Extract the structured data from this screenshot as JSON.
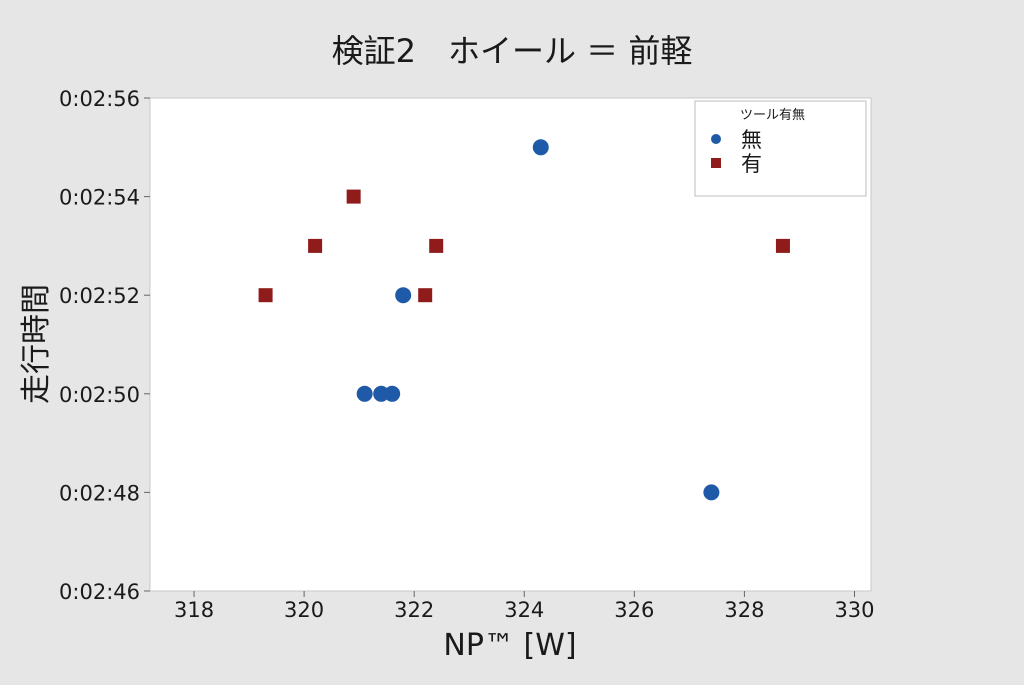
{
  "chart_data": {
    "type": "scatter",
    "title": "検証2　ホイール ＝ 前軽",
    "xlabel": "NP™ [W]",
    "ylabel": "走行時間",
    "xlim": [
      317.2,
      330.3
    ],
    "ylim": [
      166,
      176
    ],
    "xticks": [
      318,
      320,
      322,
      324,
      326,
      328,
      330
    ],
    "yticks": [
      {
        "value": 166,
        "label": "0:02:46"
      },
      {
        "value": 168,
        "label": "0:02:48"
      },
      {
        "value": 170,
        "label": "0:02:50"
      },
      {
        "value": 172,
        "label": "0:02:52"
      },
      {
        "value": 174,
        "label": "0:02:54"
      },
      {
        "value": 176,
        "label": "0:02:56"
      }
    ],
    "grid": false,
    "legend": {
      "title": "ツール有無",
      "position": "top-right"
    },
    "series": [
      {
        "name": "無",
        "marker": "circle",
        "color": "#1f5aa8",
        "points": [
          {
            "x": 321.1,
            "y": 170
          },
          {
            "x": 321.4,
            "y": 170
          },
          {
            "x": 321.6,
            "y": 170
          },
          {
            "x": 321.8,
            "y": 172
          },
          {
            "x": 324.3,
            "y": 175
          },
          {
            "x": 327.4,
            "y": 168
          }
        ]
      },
      {
        "name": "有",
        "marker": "square",
        "color": "#8f1b1b",
        "points": [
          {
            "x": 319.3,
            "y": 172
          },
          {
            "x": 320.2,
            "y": 173
          },
          {
            "x": 320.9,
            "y": 174
          },
          {
            "x": 322.2,
            "y": 172
          },
          {
            "x": 322.4,
            "y": 173
          },
          {
            "x": 328.7,
            "y": 173
          }
        ]
      }
    ]
  }
}
